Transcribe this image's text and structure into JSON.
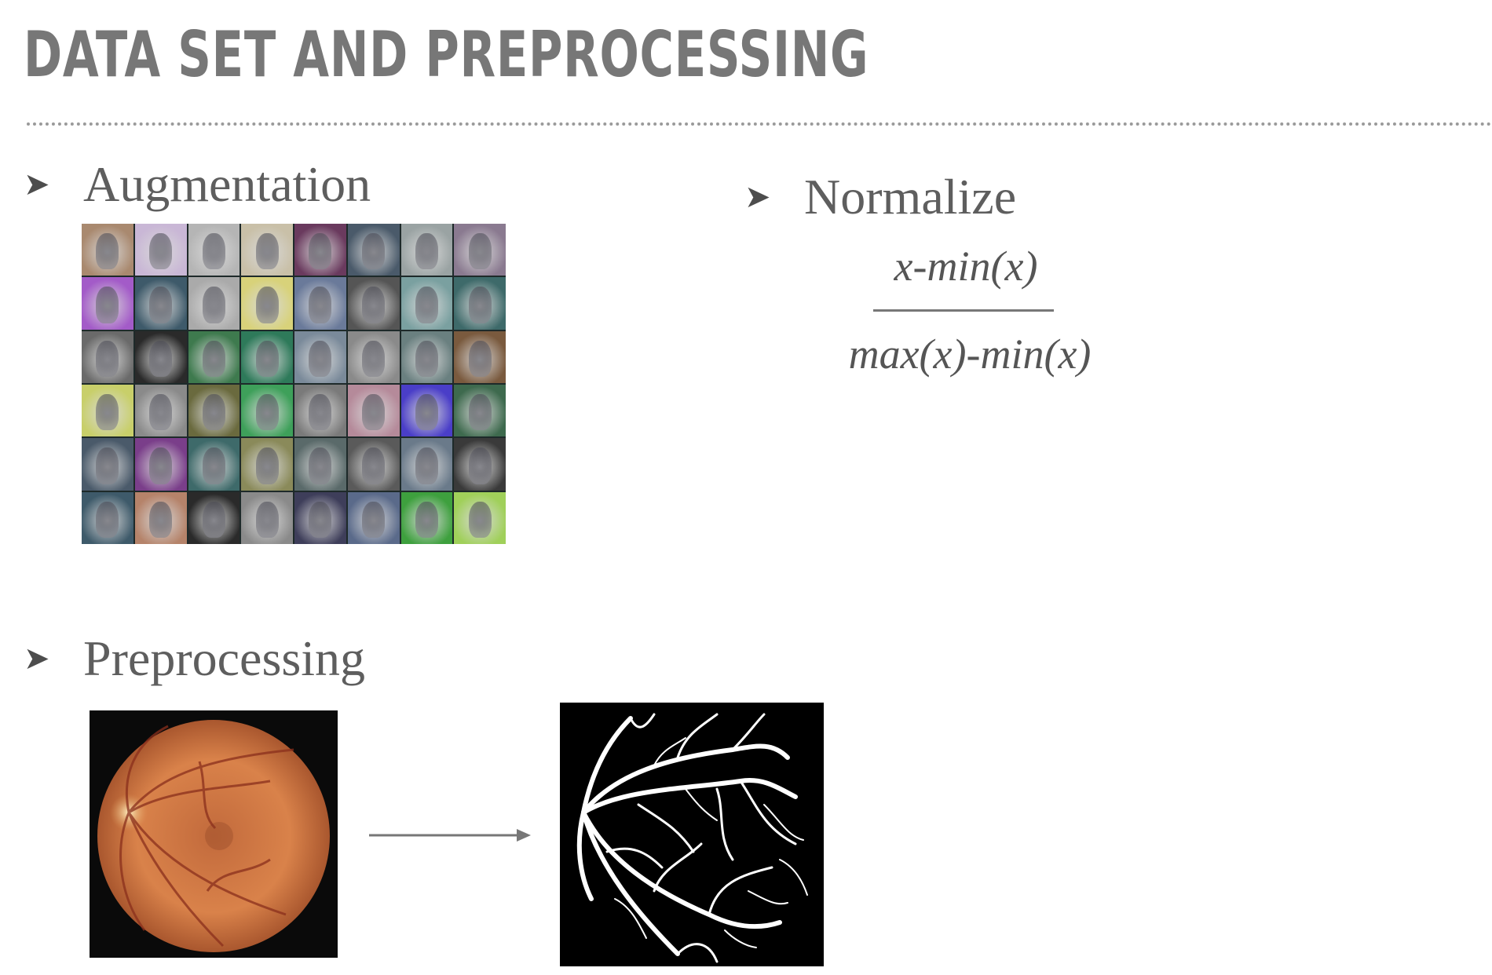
{
  "title": "DATA SET AND PREPROCESSING",
  "bullets": {
    "augmentation": "Augmentation",
    "normalize": "Normalize",
    "preprocessing": "Preprocessing"
  },
  "formula": {
    "numerator": "x-min(x)",
    "denominator": "max(x)-min(x)"
  },
  "colors": {
    "title": "#777777",
    "text": "#5e5e5e",
    "fundus": "#c8643a"
  }
}
